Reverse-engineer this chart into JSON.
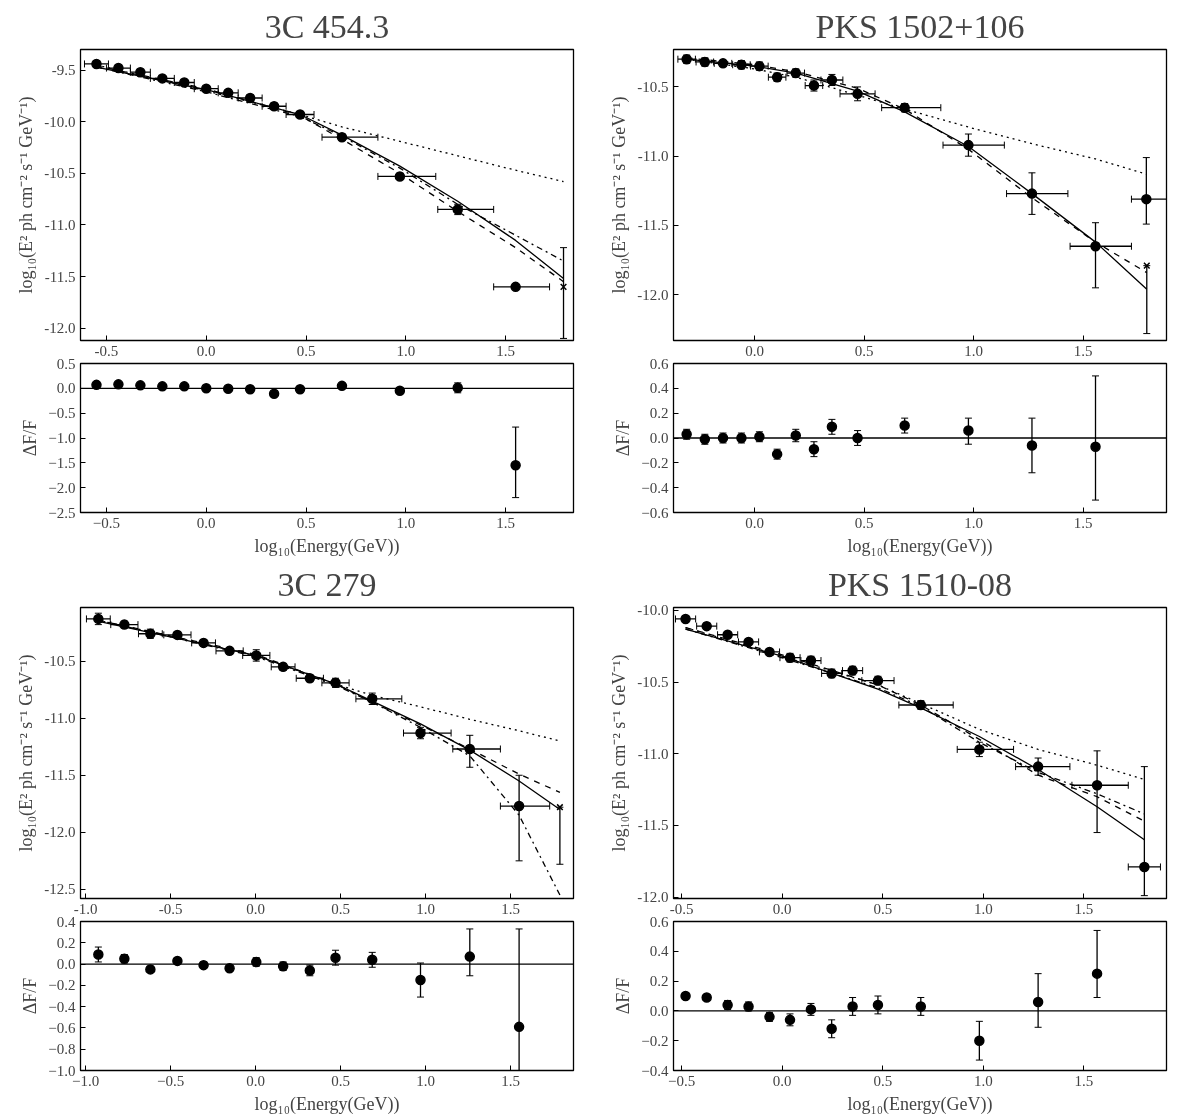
{
  "chart_data": [
    {
      "type": "scatter",
      "title": "3C 454.3",
      "ylabel": "log₁₀(E² ph cm⁻² s⁻¹ GeV⁻¹)",
      "xlim": [
        -0.63,
        1.84
      ],
      "ylim": [
        -12.12,
        -9.3
      ],
      "xticks": [
        -0.5,
        {
          "value": 0,
          "label": "0.0"
        },
        0.5,
        {
          "value": 1,
          "label": "1.0"
        },
        1.5
      ],
      "yticks": [
        -9.5,
        {
          "value": -10,
          "label": "-10.0"
        },
        -10.5,
        {
          "value": -11,
          "label": "-11.0"
        },
        -11.5,
        {
          "value": -12,
          "label": "-12.0"
        }
      ],
      "series": [
        {
          "type": "scatter",
          "marker": "circle",
          "color": "#000000",
          "x": [
            -0.55,
            -0.44,
            -0.33,
            -0.22,
            -0.11,
            0.0,
            0.11,
            0.22,
            0.34,
            0.47,
            0.68,
            0.97,
            1.26,
            1.55
          ],
          "values": [
            -9.44,
            -9.48,
            -9.52,
            -9.58,
            -9.62,
            -9.68,
            -9.72,
            -9.77,
            -9.85,
            -9.93,
            -10.15,
            -10.53,
            -10.85,
            -11.6
          ],
          "errors": [
            0.02,
            0.02,
            0.02,
            0.02,
            0.02,
            0.02,
            0.03,
            0.03,
            0.03,
            0.02,
            0.03,
            0.03,
            0.05,
            null
          ],
          "xerrors": [
            0.06,
            0.06,
            0.05,
            0.06,
            0.05,
            0.06,
            0.05,
            0.06,
            0.06,
            0.07,
            [
              0.58,
              0.86
            ],
            [
              0.86,
              1.15
            ],
            [
              1.16,
              1.44
            ],
            [
              1.44,
              1.72
            ]
          ]
        },
        {
          "type": "scatter",
          "marker": "cross",
          "color": "#000000",
          "x": [
            1.79
          ],
          "values": [
            -11.6
          ],
          "errors": [
            [
              -12.1,
              -11.22
            ]
          ]
        },
        {
          "type": "line",
          "line_style": "solid",
          "color": "#000000",
          "x": [
            -0.55,
            0.0,
            0.47,
            0.68,
            0.97,
            1.26,
            1.55,
            1.79
          ],
          "values": [
            -9.47,
            -9.69,
            -9.93,
            -10.13,
            -10.43,
            -10.77,
            -11.15,
            -11.52
          ]
        },
        {
          "type": "line",
          "line_style": "dashed",
          "color": "#000000",
          "x": [
            -0.55,
            0.0,
            0.47,
            0.68,
            0.97,
            1.26,
            1.55,
            1.79
          ],
          "values": [
            -9.46,
            -9.68,
            -9.94,
            -10.17,
            -10.5,
            -10.87,
            -11.22,
            -11.55
          ]
        },
        {
          "type": "line",
          "line_style": "dotted",
          "color": "#000000",
          "x": [
            -0.55,
            0.0,
            0.47,
            0.68,
            0.97,
            1.26,
            1.55,
            1.79
          ],
          "values": [
            -9.45,
            -9.7,
            -9.93,
            -10.05,
            -10.19,
            -10.33,
            -10.47,
            -10.58
          ]
        },
        {
          "type": "line",
          "line_style": "dashdot",
          "color": "#000000",
          "x": [
            -0.55,
            0.0,
            0.47,
            0.68,
            0.97,
            1.26,
            1.55,
            1.79
          ],
          "values": [
            -9.47,
            -9.71,
            -9.95,
            -10.14,
            -10.45,
            -10.8,
            -11.1,
            -11.35
          ]
        }
      ]
    },
    {
      "type": "scatter",
      "title": "PKS 1502+106",
      "ylabel": "log₁₀(E² ph cm⁻² s⁻¹ GeV⁻¹)",
      "xlim": [
        -0.37,
        1.88
      ],
      "ylim": [
        -12.33,
        -10.23
      ],
      "xticks": [
        {
          "value": 0,
          "label": "0.0"
        },
        0.5,
        {
          "value": 1,
          "label": "1.0"
        },
        1.5
      ],
      "yticks": [
        -10.5,
        {
          "value": -11,
          "label": "-11.0"
        },
        -11.5,
        {
          "value": -12,
          "label": "-12.0"
        }
      ],
      "series": [
        {
          "type": "scatter",
          "marker": "circle",
          "color": "#000000",
          "x": [
            -0.31,
            -0.227,
            -0.144,
            -0.06,
            0.022,
            0.103,
            0.188,
            0.271,
            0.353,
            0.47,
            0.685,
            0.976,
            1.266,
            1.556,
            1.788
          ],
          "values": [
            -10.3,
            -10.32,
            -10.33,
            -10.34,
            -10.35,
            -10.43,
            -10.4,
            -10.49,
            -10.45,
            -10.55,
            -10.65,
            -10.92,
            -11.27,
            -11.65,
            -11.31
          ],
          "errors": [
            0.03,
            0.03,
            0.02,
            0.03,
            0.03,
            0.03,
            0.03,
            0.04,
            0.04,
            0.05,
            0.03,
            0.08,
            0.15,
            [
              -11.95,
              -11.48
            ],
            [
              -11.49,
              -11.01
            ]
          ],
          "xerrors": [
            0.04,
            0.04,
            0.04,
            0.04,
            0.04,
            0.04,
            0.04,
            0.04,
            0.05,
            0.08,
            [
              0.58,
              0.85
            ],
            [
              0.86,
              1.14
            ],
            [
              1.15,
              1.43
            ],
            [
              1.44,
              1.72
            ],
            [
              1.72,
              1.88
            ]
          ]
        },
        {
          "marker": "cross",
          "color": "#000000",
          "x": [
            1.79
          ],
          "values": [
            -11.79
          ],
          "errors": [
            [
              -12.28,
              -11.79
            ]
          ]
        },
        {
          "type": "line",
          "line_style": "solid",
          "color": "#000000",
          "x": [
            -0.31,
            0.0,
            0.19,
            0.47,
            0.685,
            0.976,
            1.266,
            1.556,
            1.79
          ],
          "values": [
            -10.3,
            -10.35,
            -10.4,
            -10.53,
            -10.68,
            -10.93,
            -11.27,
            -11.62,
            -11.96
          ]
        },
        {
          "type": "line",
          "line_style": "dashed",
          "color": "#000000",
          "x": [
            -0.31,
            0.0,
            0.19,
            0.47,
            0.685,
            0.976,
            1.266,
            1.556,
            1.79
          ],
          "values": [
            -10.29,
            -10.34,
            -10.39,
            -10.51,
            -10.66,
            -10.95,
            -11.3,
            -11.62,
            -11.84
          ]
        },
        {
          "type": "line",
          "line_style": "dotted",
          "color": "#000000",
          "x": [
            -0.31,
            0.0,
            0.19,
            0.47,
            0.685,
            0.976,
            1.266,
            1.556,
            1.79
          ],
          "values": [
            -10.3,
            -10.37,
            -10.43,
            -10.56,
            -10.66,
            -10.79,
            -10.91,
            -11.02,
            -11.13
          ]
        }
      ]
    },
    {
      "type": "scatter",
      "xlabel": "log₁₀(Energy(GeV))",
      "ylabel": "ΔF/F",
      "xlim": [
        -0.63,
        1.84
      ],
      "ylim": [
        -2.5,
        0.5
      ],
      "xticks": [
        {
          "value": -0.5,
          "label": "−0.5"
        },
        {
          "value": 0,
          "label": "0.0"
        },
        0.5,
        {
          "value": 1,
          "label": "1.0"
        },
        1.5
      ],
      "yticks": [
        {
          "value": -2.5,
          "label": "−2.5"
        },
        {
          "value": -2,
          "label": "−2.0"
        },
        {
          "value": -1.5,
          "label": "−1.5"
        },
        {
          "value": -1,
          "label": "−1.0"
        },
        {
          "value": -0.5,
          "label": "−0.5"
        },
        {
          "value": 0,
          "label": "0.0"
        },
        0.5
      ],
      "ref_lines": [
        {
          "axis": "y",
          "value": 0,
          "color": "#000000"
        }
      ],
      "series": [
        {
          "type": "scatter",
          "marker": "circle",
          "color": "#000000",
          "x": [
            -0.55,
            -0.44,
            -0.33,
            -0.22,
            -0.11,
            0.0,
            0.11,
            0.22,
            0.34,
            0.47,
            0.68,
            0.97,
            1.26,
            1.55
          ],
          "values": [
            0.07,
            0.08,
            0.06,
            0.04,
            0.04,
            0.0,
            -0.01,
            -0.02,
            -0.11,
            -0.02,
            0.05,
            -0.05,
            0.01,
            -1.55
          ],
          "errors": [
            null,
            null,
            null,
            null,
            null,
            null,
            null,
            null,
            null,
            null,
            null,
            0.04,
            0.1,
            [
              -2.2,
              -0.78
            ]
          ]
        }
      ]
    },
    {
      "type": "scatter",
      "xlabel": "log₁₀(Energy(GeV))",
      "ylabel": "ΔF/F",
      "xlim": [
        -0.37,
        1.88
      ],
      "ylim": [
        -0.6,
        0.6
      ],
      "xticks": [
        {
          "value": 0,
          "label": "0.0"
        },
        0.5,
        {
          "value": 1,
          "label": "1.0"
        },
        1.5
      ],
      "yticks": [
        {
          "value": -0.6,
          "label": "−0.6"
        },
        {
          "value": -0.4,
          "label": "−0.4"
        },
        {
          "value": -0.2,
          "label": "−0.2"
        },
        {
          "value": 0,
          "label": "0.0"
        },
        0.2,
        0.4,
        0.6
      ],
      "ref_lines": [
        {
          "axis": "y",
          "value": 0,
          "color": "#000000"
        }
      ],
      "series": [
        {
          "type": "scatter",
          "marker": "circle",
          "color": "#000000",
          "x": [
            -0.31,
            -0.227,
            -0.144,
            -0.06,
            0.022,
            0.103,
            0.188,
            0.271,
            0.353,
            0.47,
            0.685,
            0.976,
            1.266,
            1.556
          ],
          "values": [
            0.03,
            -0.01,
            0.0,
            0.0,
            0.01,
            -0.13,
            0.02,
            -0.09,
            0.09,
            0.0,
            0.1,
            0.06,
            -0.06,
            -0.07
          ],
          "errors": [
            0.04,
            0.04,
            0.04,
            0.04,
            0.04,
            0.04,
            0.05,
            0.06,
            0.06,
            0.06,
            0.06,
            [
              -0.05,
              0.16
            ],
            [
              -0.28,
              0.16
            ],
            [
              -0.5,
              0.5
            ]
          ]
        }
      ]
    },
    {
      "type": "scatter",
      "title": "3C 279",
      "ylabel": "log₁₀(E² ph cm⁻² s⁻¹ GeV⁻¹)",
      "xlim": [
        -1.03,
        1.87
      ],
      "ylim": [
        -12.58,
        -10.03
      ],
      "xticks": [
        {
          "value": -1,
          "label": "-1.0"
        },
        -0.5,
        {
          "value": 0,
          "label": "0.0"
        },
        0.5,
        {
          "value": 1,
          "label": "1.0"
        },
        1.5
      ],
      "yticks": [
        -10.5,
        {
          "value": -11,
          "label": "-11.0"
        },
        -11.5,
        {
          "value": -12,
          "label": "-12.0"
        },
        -12.5
      ],
      "series": [
        {
          "type": "scatter",
          "marker": "circle",
          "color": "#000000",
          "x": [
            -0.925,
            -0.772,
            -0.619,
            -0.46,
            -0.306,
            -0.153,
            0.004,
            0.162,
            0.319,
            0.47,
            0.686,
            0.97,
            1.26,
            1.55
          ],
          "values": [
            -10.13,
            -10.18,
            -10.26,
            -10.27,
            -10.34,
            -10.41,
            -10.45,
            -10.55,
            -10.65,
            -10.69,
            -10.83,
            -11.13,
            -11.27,
            -11.77
          ],
          "errors": [
            0.05,
            0.03,
            0.04,
            0.03,
            0.03,
            0.03,
            0.05,
            0.03,
            0.03,
            0.04,
            0.05,
            0.05,
            [
              -11.43,
              -11.15
            ],
            [
              -12.25,
              -11.5
            ]
          ],
          "xerrors": [
            0.07,
            0.08,
            0.07,
            0.08,
            0.07,
            0.08,
            0.08,
            0.07,
            0.08,
            0.08,
            [
              0.59,
              0.86
            ],
            [
              0.87,
              1.15
            ],
            [
              1.16,
              1.44
            ],
            [
              1.44,
              1.73
            ]
          ]
        },
        {
          "type": "scatter",
          "marker": "cross",
          "color": "#000000",
          "x": [
            1.79
          ],
          "values": [
            -11.78
          ],
          "errors": [
            [
              -12.28,
              -11.78
            ]
          ]
        },
        {
          "type": "line",
          "line_style": "solid",
          "color": "#000000",
          "x": [
            -0.93,
            0.0,
            0.47,
            0.686,
            0.97,
            1.26,
            1.55,
            1.79
          ],
          "values": [
            -10.15,
            -10.45,
            -10.7,
            -10.85,
            -11.05,
            -11.28,
            -11.55,
            -11.8
          ]
        },
        {
          "type": "line",
          "line_style": "dashed",
          "color": "#000000",
          "x": [
            -0.93,
            0.0,
            0.47,
            0.686,
            0.97,
            1.26,
            1.55,
            1.79
          ],
          "values": [
            -10.14,
            -10.44,
            -10.7,
            -10.86,
            -11.06,
            -11.27,
            -11.49,
            -11.65
          ]
        },
        {
          "type": "line",
          "line_style": "dotted",
          "color": "#000000",
          "x": [
            -0.93,
            0.0,
            0.47,
            0.686,
            0.97,
            1.26,
            1.55,
            1.79
          ],
          "values": [
            -10.14,
            -10.45,
            -10.7,
            -10.8,
            -10.9,
            -11.01,
            -11.11,
            -11.2
          ]
        },
        {
          "type": "line",
          "line_style": "dashdot",
          "color": "#000000",
          "x": [
            -0.93,
            0.0,
            0.47,
            0.686,
            0.97,
            1.26,
            1.55,
            1.79
          ],
          "values": [
            -10.14,
            -10.46,
            -10.71,
            -10.86,
            -11.08,
            -11.33,
            -11.85,
            -12.55
          ]
        }
      ]
    },
    {
      "type": "scatter",
      "title": "PKS 1510-08",
      "ylabel": "log₁₀(E² ph cm⁻² s⁻¹ GeV⁻¹)",
      "xlim": [
        -0.54,
        1.91
      ],
      "ylim": [
        -12.01,
        -9.98
      ],
      "xticks": [
        -0.5,
        {
          "value": 0,
          "label": "0.0"
        },
        0.5,
        {
          "value": 1,
          "label": "1.0"
        },
        1.5
      ],
      "yticks": [
        {
          "value": -10,
          "label": "-10.0"
        },
        -10.5,
        {
          "value": -11,
          "label": "-11.0"
        },
        -11.5,
        {
          "value": -12,
          "label": "-12.0"
        }
      ],
      "series": [
        {
          "type": "scatter",
          "marker": "circle",
          "color": "#000000",
          "x": [
            -0.48,
            -0.375,
            -0.271,
            -0.167,
            -0.063,
            0.039,
            0.143,
            0.246,
            0.35,
            0.476,
            0.689,
            0.98,
            1.272,
            1.565,
            1.8
          ],
          "values": [
            -10.06,
            -10.11,
            -10.17,
            -10.22,
            -10.29,
            -10.33,
            -10.35,
            -10.44,
            -10.42,
            -10.49,
            -10.66,
            -10.97,
            -11.09,
            -11.22,
            -11.79
          ],
          "errors": [
            0.02,
            0.02,
            0.02,
            0.02,
            0.02,
            0.03,
            0.03,
            0.03,
            0.03,
            0.03,
            0.03,
            0.05,
            0.06,
            [
              -11.55,
              -10.98
            ],
            [
              -11.99,
              -11.09
            ]
          ],
          "xerrors": [
            0.05,
            0.05,
            0.05,
            0.05,
            0.05,
            0.05,
            0.05,
            0.05,
            0.05,
            0.08,
            [
              0.58,
              0.85
            ],
            [
              0.87,
              1.15
            ],
            [
              1.16,
              1.43
            ],
            [
              1.44,
              1.72
            ],
            [
              1.72,
              1.88
            ]
          ]
        },
        {
          "type": "line",
          "line_style": "solid",
          "color": "#000000",
          "x": [
            -0.48,
            0.0,
            0.476,
            0.689,
            0.98,
            1.272,
            1.565,
            1.8
          ],
          "values": [
            -10.13,
            -10.32,
            -10.55,
            -10.68,
            -10.88,
            -11.11,
            -11.37,
            -11.6
          ]
        },
        {
          "type": "line",
          "line_style": "dashed",
          "color": "#000000",
          "x": [
            -0.48,
            0.0,
            0.476,
            0.689,
            0.98,
            1.272,
            1.565,
            1.8
          ],
          "values": [
            -10.12,
            -10.31,
            -10.52,
            -10.66,
            -10.9,
            -11.15,
            -11.3,
            -11.47
          ]
        },
        {
          "type": "line",
          "line_style": "dotted",
          "color": "#000000",
          "x": [
            -0.48,
            0.0,
            0.476,
            0.689,
            0.98,
            1.272,
            1.565,
            1.8
          ],
          "values": [
            -10.12,
            -10.32,
            -10.52,
            -10.65,
            -10.83,
            -10.97,
            -11.08,
            -11.18
          ]
        },
        {
          "type": "line",
          "line_style": "dashdot",
          "color": "#000000",
          "x": [
            -0.48,
            0.0,
            0.476,
            0.689,
            0.98,
            1.272,
            1.565,
            1.8
          ],
          "values": [
            -10.13,
            -10.33,
            -10.54,
            -10.67,
            -10.92,
            -11.13,
            -11.28,
            -11.42
          ]
        }
      ]
    },
    {
      "type": "scatter",
      "xlabel": "log₁₀(Energy(GeV))",
      "ylabel": "ΔF/F",
      "xlim": [
        -1.03,
        1.87
      ],
      "ylim": [
        -1.0,
        0.4
      ],
      "xticks": [
        {
          "value": -1,
          "label": "−1.0"
        },
        {
          "value": -0.5,
          "label": "−0.5"
        },
        {
          "value": 0,
          "label": "0.0"
        },
        0.5,
        {
          "value": 1,
          "label": "1.0"
        },
        1.5
      ],
      "yticks": [
        {
          "value": -1,
          "label": "−1.0"
        },
        {
          "value": -0.8,
          "label": "−0.8"
        },
        {
          "value": -0.6,
          "label": "−0.6"
        },
        {
          "value": -0.4,
          "label": "−0.4"
        },
        {
          "value": -0.2,
          "label": "−0.2"
        },
        {
          "value": 0,
          "label": "0.0"
        },
        0.2,
        0.4
      ],
      "ref_lines": [
        {
          "axis": "y",
          "value": 0,
          "color": "#000000"
        }
      ],
      "series": [
        {
          "type": "scatter",
          "marker": "circle",
          "color": "#000000",
          "x": [
            -0.925,
            -0.772,
            -0.619,
            -0.46,
            -0.306,
            -0.153,
            0.004,
            0.162,
            0.319,
            0.47,
            0.686,
            0.97,
            1.26,
            1.55
          ],
          "values": [
            0.09,
            0.05,
            -0.05,
            0.03,
            -0.01,
            -0.04,
            0.02,
            -0.02,
            -0.06,
            0.06,
            0.04,
            -0.15,
            0.07,
            -0.59
          ],
          "errors": [
            0.07,
            0.04,
            0.03,
            null,
            0.03,
            0.03,
            0.04,
            0.04,
            0.05,
            0.07,
            0.07,
            0.16,
            [
              -0.11,
              0.33
            ],
            [
              -1.0,
              0.33
            ]
          ]
        }
      ]
    },
    {
      "type": "scatter",
      "xlabel": "log₁₀(Energy(GeV))",
      "ylabel": "ΔF/F",
      "xlim": [
        -0.54,
        1.91
      ],
      "ylim": [
        -0.4,
        0.6
      ],
      "xticks": [
        {
          "value": -0.5,
          "label": "−0.5"
        },
        {
          "value": 0,
          "label": "0.0"
        },
        0.5,
        {
          "value": 1,
          "label": "1.0"
        },
        1.5
      ],
      "yticks": [
        {
          "value": -0.4,
          "label": "−0.4"
        },
        {
          "value": -0.2,
          "label": "−0.2"
        },
        {
          "value": 0,
          "label": "0.0"
        },
        0.2,
        0.4,
        0.6
      ],
      "ref_lines": [
        {
          "axis": "y",
          "value": 0,
          "color": "#000000"
        }
      ],
      "series": [
        {
          "type": "scatter",
          "marker": "circle",
          "color": "#000000",
          "x": [
            -0.48,
            -0.375,
            -0.271,
            -0.167,
            -0.063,
            0.039,
            0.143,
            0.246,
            0.35,
            0.476,
            0.689,
            0.98,
            1.272,
            1.565
          ],
          "values": [
            0.1,
            0.09,
            0.04,
            0.03,
            -0.04,
            -0.06,
            0.01,
            -0.12,
            0.03,
            0.04,
            0.03,
            -0.2,
            0.06,
            0.25
          ],
          "errors": [
            0.02,
            0.02,
            0.03,
            0.03,
            0.03,
            0.04,
            0.04,
            0.06,
            0.06,
            0.06,
            0.06,
            [
              -0.33,
              -0.07
            ],
            [
              -0.11,
              0.25
            ],
            [
              0.09,
              0.54
            ]
          ]
        }
      ]
    }
  ]
}
